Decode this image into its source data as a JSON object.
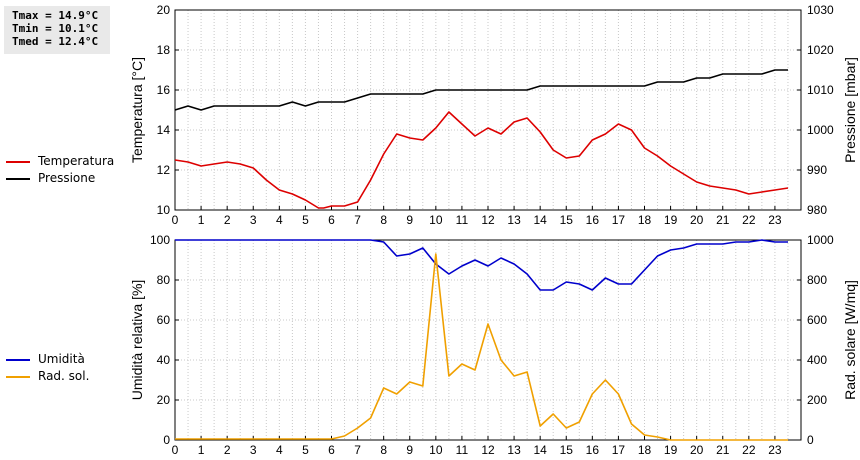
{
  "stats": {
    "tmax": "Tmax = 14.9°C",
    "tmin": "Tmin = 10.1°C",
    "tmed": "Tmed = 12.4°C"
  },
  "legend_top": [
    {
      "label": "Temperatura",
      "color": "#dd0000"
    },
    {
      "label": "Pressione",
      "color": "#000000"
    }
  ],
  "legend_bottom": [
    {
      "label": "Umidità",
      "color": "#0000cc"
    },
    {
      "label": "Rad. sol.",
      "color": "#f0a000"
    }
  ],
  "chart_data": [
    {
      "type": "line",
      "x_ticks": [
        0,
        1,
        2,
        3,
        4,
        5,
        6,
        7,
        8,
        9,
        10,
        11,
        12,
        13,
        14,
        15,
        16,
        17,
        18,
        19,
        20,
        21,
        22,
        23
      ],
      "xlim": [
        0,
        24
      ],
      "ylabel_left": "Temperatura [°C]",
      "ylim_left": [
        10,
        20
      ],
      "yticks_left": [
        10,
        12,
        14,
        16,
        18,
        20
      ],
      "ylabel_right": "Pressione [mbar]",
      "ylim_right": [
        980,
        1030
      ],
      "yticks_right": [
        980,
        990,
        1000,
        1010,
        1020,
        1030
      ],
      "grid": true,
      "series": [
        {
          "name": "Temperatura",
          "axis": "left",
          "color": "#dd0000",
          "x": [
            0,
            0.5,
            1,
            1.5,
            2,
            2.5,
            3,
            3.5,
            4,
            4.5,
            5,
            5.5,
            5.7,
            6,
            6.5,
            7,
            7.5,
            8,
            8.5,
            9,
            9.5,
            10,
            10.5,
            11,
            11.5,
            12,
            12.5,
            13,
            13.5,
            14,
            14.5,
            15,
            15.5,
            16,
            16.5,
            17,
            17.5,
            18,
            18.5,
            19,
            19.5,
            20,
            20.5,
            21,
            21.5,
            22,
            22.5,
            23,
            23.5
          ],
          "y": [
            12.5,
            12.4,
            12.2,
            12.3,
            12.4,
            12.3,
            12.1,
            11.5,
            11.0,
            10.8,
            10.5,
            10.1,
            10.1,
            10.2,
            10.2,
            10.4,
            11.5,
            12.8,
            13.8,
            13.6,
            13.5,
            14.1,
            14.9,
            14.3,
            13.7,
            14.1,
            13.8,
            14.4,
            14.6,
            13.9,
            13.0,
            12.6,
            12.7,
            13.5,
            13.8,
            14.3,
            14.0,
            13.1,
            12.7,
            12.2,
            11.8,
            11.4,
            11.2,
            11.1,
            11.0,
            10.8,
            10.9,
            11.0,
            11.1
          ]
        },
        {
          "name": "Pressione",
          "axis": "right",
          "color": "#000000",
          "x": [
            0,
            0.5,
            1,
            1.5,
            2,
            2.5,
            3,
            3.5,
            4,
            4.5,
            5,
            5.5,
            6,
            6.5,
            7,
            7.5,
            8,
            8.5,
            9,
            9.5,
            10,
            10.5,
            11,
            11.5,
            12,
            12.5,
            13,
            13.5,
            14,
            14.5,
            15,
            15.5,
            16,
            16.5,
            17,
            17.5,
            18,
            18.5,
            19,
            19.5,
            20,
            20.5,
            21,
            21.5,
            22,
            22.5,
            23,
            23.5
          ],
          "y": [
            1005,
            1006,
            1005,
            1006,
            1006,
            1006,
            1006,
            1006,
            1006,
            1007,
            1006,
            1007,
            1007,
            1007,
            1008,
            1009,
            1009,
            1009,
            1009,
            1009,
            1010,
            1010,
            1010,
            1010,
            1010,
            1010,
            1010,
            1010,
            1011,
            1011,
            1011,
            1011,
            1011,
            1011,
            1011,
            1011,
            1011,
            1012,
            1012,
            1012,
            1013,
            1013,
            1014,
            1014,
            1014,
            1014,
            1015,
            1015
          ]
        }
      ]
    },
    {
      "type": "line",
      "x_ticks": [
        0,
        1,
        2,
        3,
        4,
        5,
        6,
        7,
        8,
        9,
        10,
        11,
        12,
        13,
        14,
        15,
        16,
        17,
        18,
        19,
        20,
        21,
        22,
        23
      ],
      "xlim": [
        0,
        24
      ],
      "ylabel_left": "Umidità relativa [%]",
      "ylim_left": [
        0,
        100
      ],
      "yticks_left": [
        0,
        20,
        40,
        60,
        80,
        100
      ],
      "ylabel_right": "Rad. solare [W/mq]",
      "ylim_right": [
        0,
        1000
      ],
      "yticks_right": [
        0,
        200,
        400,
        600,
        800,
        1000
      ],
      "grid": true,
      "series": [
        {
          "name": "Umidità",
          "axis": "left",
          "color": "#0000cc",
          "x": [
            0,
            7.5,
            8,
            8.5,
            9,
            9.5,
            10,
            10.5,
            11,
            11.5,
            12,
            12.5,
            13,
            13.5,
            14,
            14.5,
            15,
            15.5,
            16,
            16.5,
            17,
            17.5,
            18,
            18.5,
            19,
            19.5,
            20,
            20.5,
            21,
            21.5,
            22,
            22.5,
            23,
            23.5
          ],
          "y": [
            100,
            100,
            99,
            92,
            93,
            96,
            88,
            83,
            87,
            90,
            87,
            91,
            88,
            83,
            75,
            75,
            79,
            78,
            75,
            81,
            78,
            78,
            85,
            92,
            95,
            96,
            98,
            98,
            98,
            99,
            99,
            100,
            99,
            99
          ]
        },
        {
          "name": "Rad. sol.",
          "axis": "right",
          "color": "#f0a000",
          "x": [
            0,
            0.5,
            1,
            1.5,
            2,
            2.5,
            3,
            3.5,
            4,
            4.5,
            5,
            5.5,
            6,
            6.5,
            7,
            7.5,
            8,
            8.5,
            9,
            9.5,
            10,
            10.5,
            11,
            11.5,
            12,
            12.5,
            13,
            13.5,
            14,
            14.5,
            15,
            15.5,
            16,
            16.5,
            17,
            17.5,
            18,
            18.5,
            19,
            19.5,
            20,
            20.5,
            21,
            21.5,
            22,
            22.5,
            23,
            23.5
          ],
          "y": [
            5,
            5,
            5,
            5,
            5,
            5,
            5,
            5,
            5,
            5,
            5,
            5,
            5,
            20,
            60,
            110,
            260,
            230,
            290,
            270,
            930,
            320,
            380,
            350,
            580,
            400,
            320,
            340,
            70,
            130,
            60,
            90,
            230,
            300,
            230,
            80,
            25,
            15,
            0,
            0,
            0,
            0,
            0,
            0,
            0,
            0,
            0,
            0
          ]
        }
      ]
    }
  ]
}
